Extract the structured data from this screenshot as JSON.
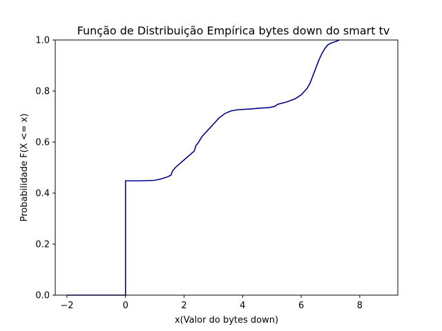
{
  "chart_data": {
    "type": "line",
    "title": "Função de Distribuição Empírica bytes down do smart tv",
    "xlabel": "x(Valor do bytes down)",
    "ylabel": "Probabilidade F(X <= x)",
    "xlim": [
      -2.4,
      9.3
    ],
    "ylim": [
      0,
      1.0
    ],
    "xticks": [
      -2,
      0,
      2,
      4,
      6,
      8
    ],
    "yticks": [
      0.0,
      0.2,
      0.4,
      0.6,
      0.8,
      1.0
    ],
    "xtick_labels": [
      "−2",
      "0",
      "2",
      "4",
      "6",
      "8"
    ],
    "ytick_labels": [
      "0.0",
      "0.2",
      "0.4",
      "0.6",
      "0.8",
      "1.0"
    ],
    "grid": false,
    "color": "#00008b",
    "series": [
      {
        "x": [
          -2.0,
          0.0,
          0.0,
          0.5,
          1.0,
          1.2,
          1.4,
          1.55,
          1.6,
          1.7,
          1.8,
          2.0,
          2.2,
          2.35,
          2.4,
          2.5,
          2.6,
          2.8,
          3.0,
          3.2,
          3.4,
          3.6,
          3.8,
          4.0,
          4.3,
          4.6,
          4.9,
          5.1,
          5.2,
          5.5,
          5.8,
          6.0,
          6.2,
          6.3,
          6.4,
          6.5,
          6.6,
          6.7,
          6.8,
          6.9,
          7.0,
          7.2,
          7.3
        ],
        "y": [
          0.0,
          0.0,
          0.448,
          0.448,
          0.45,
          0.455,
          0.462,
          0.47,
          0.485,
          0.5,
          0.51,
          0.53,
          0.55,
          0.565,
          0.585,
          0.6,
          0.62,
          0.645,
          0.67,
          0.695,
          0.712,
          0.722,
          0.726,
          0.728,
          0.73,
          0.733,
          0.735,
          0.74,
          0.748,
          0.757,
          0.77,
          0.785,
          0.81,
          0.83,
          0.86,
          0.89,
          0.92,
          0.945,
          0.965,
          0.98,
          0.987,
          0.995,
          1.0
        ]
      }
    ]
  }
}
